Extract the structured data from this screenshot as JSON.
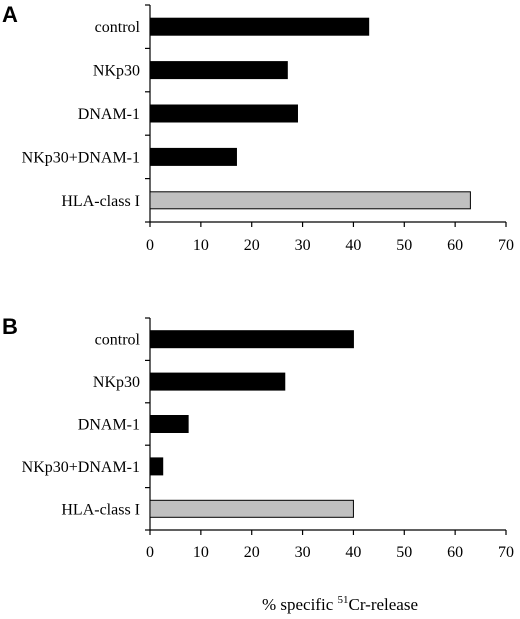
{
  "chart_data": [
    {
      "type": "bar",
      "orientation": "horizontal",
      "panel": "A",
      "categories": [
        "control",
        "NKp30",
        "DNAM-1",
        "NKp30+DNAM-1",
        "HLA-class I"
      ],
      "values": [
        43,
        27,
        29,
        17,
        63
      ],
      "xlim": [
        0,
        70
      ],
      "xticks": [
        "0",
        "10",
        "20",
        "30",
        "40",
        "50",
        "60",
        "70"
      ],
      "bar_colors": [
        "#000000",
        "#000000",
        "#000000",
        "#000000",
        "#c0c0c0"
      ]
    },
    {
      "type": "bar",
      "orientation": "horizontal",
      "panel": "B",
      "categories": [
        "control",
        "NKp30",
        "DNAM-1",
        "NKp30+DNAM-1",
        "HLA-class I"
      ],
      "values": [
        40,
        26.5,
        7.5,
        2.5,
        40
      ],
      "xlim": [
        0,
        70
      ],
      "xticks": [
        "0",
        "10",
        "20",
        "30",
        "40",
        "50",
        "60",
        "70"
      ],
      "bar_colors": [
        "#000000",
        "#000000",
        "#000000",
        "#000000",
        "#c0c0c0"
      ],
      "xlabel": {
        "prefix": "% specific ",
        "superscript": "51",
        "suffix": "Cr-release"
      }
    }
  ]
}
